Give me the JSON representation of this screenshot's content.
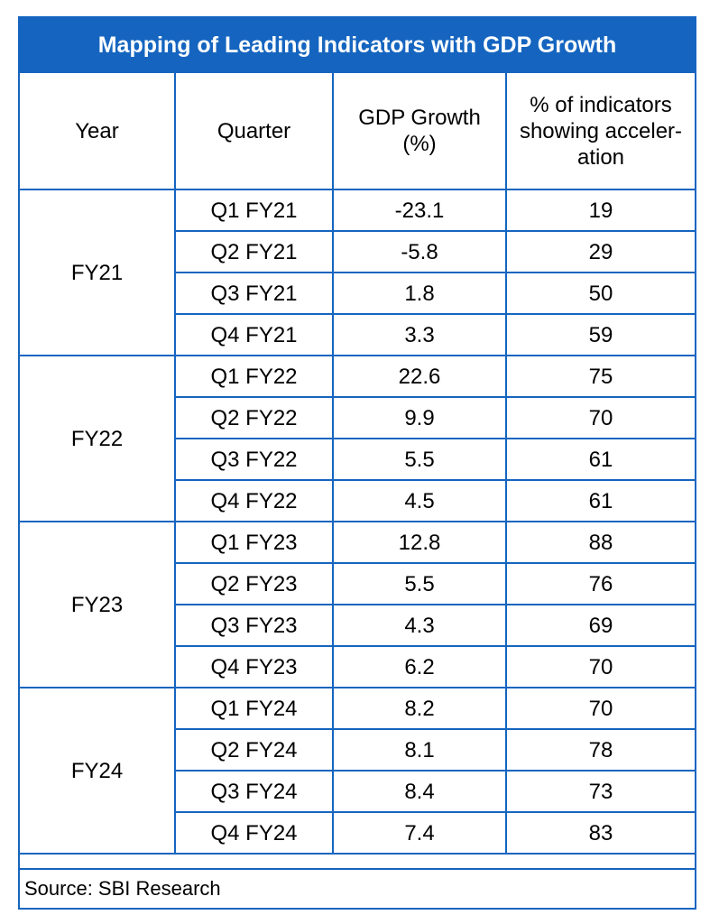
{
  "title": "Mapping of Leading Indicators with GDP Growth",
  "headers": {
    "year": "Year",
    "quarter": "Quarter",
    "gdp_line1": "GDP Growth",
    "gdp_line2": "(%)",
    "pct_line1": "% of indicators",
    "pct_line2": "showing acceler-",
    "pct_line3": "ation"
  },
  "groups": [
    {
      "year": "FY21",
      "rows": [
        {
          "quarter": "Q1 FY21",
          "gdp": "-23.1",
          "pct": "19"
        },
        {
          "quarter": "Q2 FY21",
          "gdp": "-5.8",
          "pct": "29"
        },
        {
          "quarter": "Q3 FY21",
          "gdp": "1.8",
          "pct": "50"
        },
        {
          "quarter": "Q4 FY21",
          "gdp": "3.3",
          "pct": "59"
        }
      ]
    },
    {
      "year": "FY22",
      "rows": [
        {
          "quarter": "Q1 FY22",
          "gdp": "22.6",
          "pct": "75"
        },
        {
          "quarter": "Q2 FY22",
          "gdp": "9.9",
          "pct": "70"
        },
        {
          "quarter": "Q3 FY22",
          "gdp": "5.5",
          "pct": "61"
        },
        {
          "quarter": "Q4 FY22",
          "gdp": "4.5",
          "pct": "61"
        }
      ]
    },
    {
      "year": "FY23",
      "rows": [
        {
          "quarter": "Q1 FY23",
          "gdp": "12.8",
          "pct": "88"
        },
        {
          "quarter": "Q2 FY23",
          "gdp": "5.5",
          "pct": "76"
        },
        {
          "quarter": "Q3 FY23",
          "gdp": "4.3",
          "pct": "69"
        },
        {
          "quarter": "Q4 FY23",
          "gdp": "6.2",
          "pct": "70"
        }
      ]
    },
    {
      "year": "FY24",
      "rows": [
        {
          "quarter": "Q1 FY24",
          "gdp": "8.2",
          "pct": "70"
        },
        {
          "quarter": "Q2 FY24",
          "gdp": "8.1",
          "pct": "78"
        },
        {
          "quarter": "Q3 FY24",
          "gdp": "8.4",
          "pct": "73"
        },
        {
          "quarter": "Q4 FY24",
          "gdp": "7.4",
          "pct": "83"
        }
      ]
    }
  ],
  "source": "Source: SBI Research",
  "colors": {
    "accent": "#1565c0",
    "title_text": "#ffffff"
  }
}
